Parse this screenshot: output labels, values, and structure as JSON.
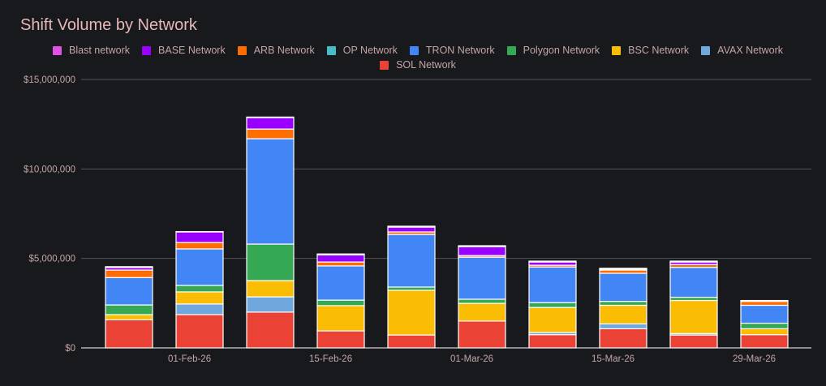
{
  "chart_data": {
    "type": "bar",
    "stacked": true,
    "title": "Shift Volume by Network",
    "xlabel": "",
    "ylabel": "",
    "ylim": [
      0,
      15000000
    ],
    "y_ticks": [
      {
        "value": 0,
        "label": "$0"
      },
      {
        "value": 5000000,
        "label": "$5,000,000"
      },
      {
        "value": 10000000,
        "label": "$10,000,000"
      },
      {
        "value": 15000000,
        "label": "$15,000,000"
      }
    ],
    "x_ticks": [
      "01-Feb-26",
      "15-Feb-26",
      "01-Mar-26",
      "15-Mar-26",
      "29-Mar-26"
    ],
    "categories": [
      "26-Jan-26",
      "02-Feb-26",
      "09-Feb-26",
      "16-Feb-26",
      "23-Feb-26",
      "02-Mar-26",
      "09-Mar-26",
      "16-Mar-26",
      "23-Mar-26",
      "30-Mar-26"
    ],
    "legend_position": "top",
    "grid": true,
    "series": [
      {
        "name": "SOL Network",
        "color": "#ea4335",
        "values": [
          1570000,
          1860000,
          2000000,
          950000,
          720000,
          1500000,
          740000,
          1070000,
          720000,
          740000
        ]
      },
      {
        "name": "AVAX Network",
        "color": "#6fa8dc",
        "values": [
          0,
          590000,
          850000,
          0,
          0,
          0,
          120000,
          270000,
          80000,
          0
        ]
      },
      {
        "name": "BSC Network",
        "color": "#fbbc04",
        "values": [
          290000,
          680000,
          910000,
          1410000,
          2500000,
          990000,
          1400000,
          1040000,
          1850000,
          330000
        ]
      },
      {
        "name": "Polygon Network",
        "color": "#34a853",
        "values": [
          540000,
          360000,
          2040000,
          310000,
          180000,
          230000,
          270000,
          220000,
          180000,
          310000
        ]
      },
      {
        "name": "OP Network",
        "color": "#46bdc6",
        "values": [
          0,
          0,
          0,
          0,
          0,
          0,
          0,
          0,
          0,
          0
        ]
      },
      {
        "name": "TRON Network",
        "color": "#4285f4",
        "values": [
          1530000,
          2040000,
          5890000,
          1910000,
          2940000,
          2350000,
          1990000,
          1570000,
          1670000,
          1000000
        ]
      },
      {
        "name": "ARB Network",
        "color": "#ff6d00",
        "values": [
          420000,
          360000,
          540000,
          220000,
          140000,
          90000,
          100000,
          180000,
          160000,
          220000
        ]
      },
      {
        "name": "BASE Network",
        "color": "#9900ff",
        "values": [
          140000,
          590000,
          640000,
          400000,
          270000,
          500000,
          180000,
          50000,
          140000,
          50000
        ]
      },
      {
        "name": "Blast network",
        "color": "#e052e6",
        "values": [
          50000,
          20000,
          30000,
          50000,
          50000,
          50000,
          50000,
          50000,
          50000,
          0
        ]
      }
    ],
    "legend_order": [
      "Blast network",
      "BASE Network",
      "ARB Network",
      "OP Network",
      "TRON Network",
      "Polygon Network",
      "BSC Network",
      "AVAX Network",
      "SOL Network"
    ]
  }
}
